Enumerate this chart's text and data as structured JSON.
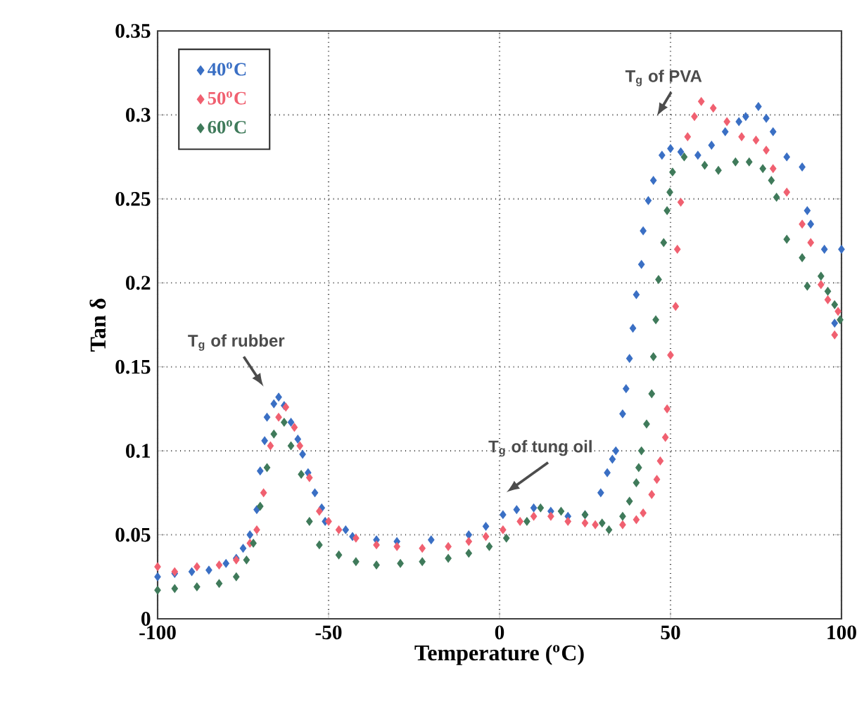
{
  "chart_data": {
    "type": "scatter",
    "xlabel": "Temperature ($^{o}$C)",
    "ylabel": "Tan δ",
    "xlim": [
      -100,
      100
    ],
    "ylim": [
      0,
      0.35
    ],
    "xticks": [
      -100,
      -50,
      0,
      50,
      100
    ],
    "yticks": [
      0,
      0.05,
      0.1,
      0.15,
      0.2,
      0.25,
      0.3,
      0.35
    ],
    "grid": true,
    "legend": "top left",
    "marker": "diamond",
    "series": [
      {
        "name": "40$^{o}$C",
        "color": "#3a6fc4",
        "x": [
          -100,
          -95,
          -90,
          -85,
          -80,
          -77,
          -75,
          -73,
          -71,
          -70,
          -68.7,
          -68,
          -66,
          -64.6,
          -63,
          -61,
          -59,
          -57.6,
          -56,
          -54,
          -52,
          -51,
          -45,
          -43,
          -36,
          -30,
          -20,
          -9,
          -4,
          1,
          5,
          10,
          15,
          20,
          25,
          29.6,
          31.5,
          33,
          34,
          36,
          37,
          38,
          39,
          40,
          41.5,
          42,
          43.5,
          45,
          47.5,
          50,
          53,
          58,
          62,
          66,
          70,
          72,
          75.7,
          78,
          80,
          84,
          88.5,
          90,
          91,
          95,
          98,
          100
        ],
        "values": [
          0.025,
          0.027,
          0.028,
          0.029,
          0.033,
          0.036,
          0.042,
          0.05,
          0.065,
          0.088,
          0.106,
          0.12,
          0.128,
          0.132,
          0.127,
          0.117,
          0.107,
          0.098,
          0.087,
          0.075,
          0.066,
          0.058,
          0.053,
          0.049,
          0.047,
          0.046,
          0.047,
          0.05,
          0.055,
          0.062,
          0.065,
          0.066,
          0.064,
          0.061,
          0.062,
          0.075,
          0.087,
          0.095,
          0.1,
          0.122,
          0.137,
          0.155,
          0.173,
          0.193,
          0.211,
          0.231,
          0.249,
          0.261,
          0.276,
          0.28,
          0.278,
          0.276,
          0.282,
          0.29,
          0.296,
          0.299,
          0.305,
          0.298,
          0.29,
          0.275,
          0.269,
          0.243,
          0.235,
          0.22,
          0.176,
          0.22
        ]
      },
      {
        "name": "50$^{o}$C",
        "color": "#f06070",
        "x": [
          -100,
          -95,
          -88.5,
          -82,
          -77,
          -73,
          -71,
          -69,
          -67,
          -64.6,
          -62.5,
          -60,
          -58.4,
          -55.6,
          -52.7,
          -50,
          -47,
          -42,
          -36,
          -30,
          -22.6,
          -15,
          -9,
          -4,
          1,
          6,
          10,
          15,
          20,
          25,
          28,
          36,
          40,
          42,
          44.5,
          46,
          47,
          48.5,
          49,
          50,
          51.5,
          52,
          53,
          55,
          57,
          59,
          62.5,
          66.5,
          70.8,
          75,
          78,
          80,
          84,
          88.5,
          91,
          94,
          96,
          98,
          99
        ],
        "values": [
          0.031,
          0.028,
          0.031,
          0.032,
          0.035,
          0.045,
          0.053,
          0.075,
          0.103,
          0.12,
          0.126,
          0.114,
          0.103,
          0.084,
          0.064,
          0.058,
          0.053,
          0.048,
          0.044,
          0.043,
          0.042,
          0.043,
          0.046,
          0.049,
          0.053,
          0.058,
          0.061,
          0.061,
          0.058,
          0.057,
          0.056,
          0.056,
          0.059,
          0.063,
          0.074,
          0.083,
          0.094,
          0.108,
          0.125,
          0.157,
          0.186,
          0.22,
          0.248,
          0.287,
          0.299,
          0.308,
          0.304,
          0.296,
          0.287,
          0.285,
          0.279,
          0.268,
          0.254,
          0.235,
          0.224,
          0.199,
          0.19,
          0.169,
          0.183
        ]
      },
      {
        "name": "60$^{o}$C",
        "color": "#3f7a5a",
        "x": [
          -100,
          -95,
          -88.5,
          -82,
          -77,
          -74,
          -72,
          -70,
          -68,
          -66,
          -63,
          -61,
          -58,
          -55.6,
          -52.7,
          -47,
          -42,
          -36,
          -29,
          -22.6,
          -15,
          -9,
          -3,
          2,
          8,
          12,
          18,
          25,
          30,
          32,
          36,
          38,
          40,
          40.7,
          41.5,
          43,
          44.5,
          45,
          45.7,
          46.5,
          48,
          49,
          49.8,
          50.6,
          54,
          60,
          64,
          69,
          73,
          77,
          79.5,
          81,
          84,
          88.5,
          90,
          94,
          96,
          98,
          99.6
        ],
        "values": [
          0.017,
          0.018,
          0.019,
          0.021,
          0.025,
          0.035,
          0.045,
          0.067,
          0.09,
          0.11,
          0.117,
          0.103,
          0.086,
          0.058,
          0.044,
          0.038,
          0.034,
          0.032,
          0.033,
          0.034,
          0.036,
          0.039,
          0.043,
          0.048,
          0.058,
          0.066,
          0.064,
          0.062,
          0.057,
          0.053,
          0.061,
          0.07,
          0.081,
          0.09,
          0.1,
          0.116,
          0.134,
          0.156,
          0.178,
          0.202,
          0.224,
          0.243,
          0.254,
          0.266,
          0.275,
          0.27,
          0.267,
          0.272,
          0.272,
          0.268,
          0.261,
          0.251,
          0.226,
          0.215,
          0.198,
          0.204,
          0.195,
          0.187,
          0.178
        ]
      }
    ],
    "annotations": [
      "T$_{g}$ of rubber",
      "T$_{g}$ of tung oil",
      "T$_{g}$ of PVA"
    ]
  }
}
